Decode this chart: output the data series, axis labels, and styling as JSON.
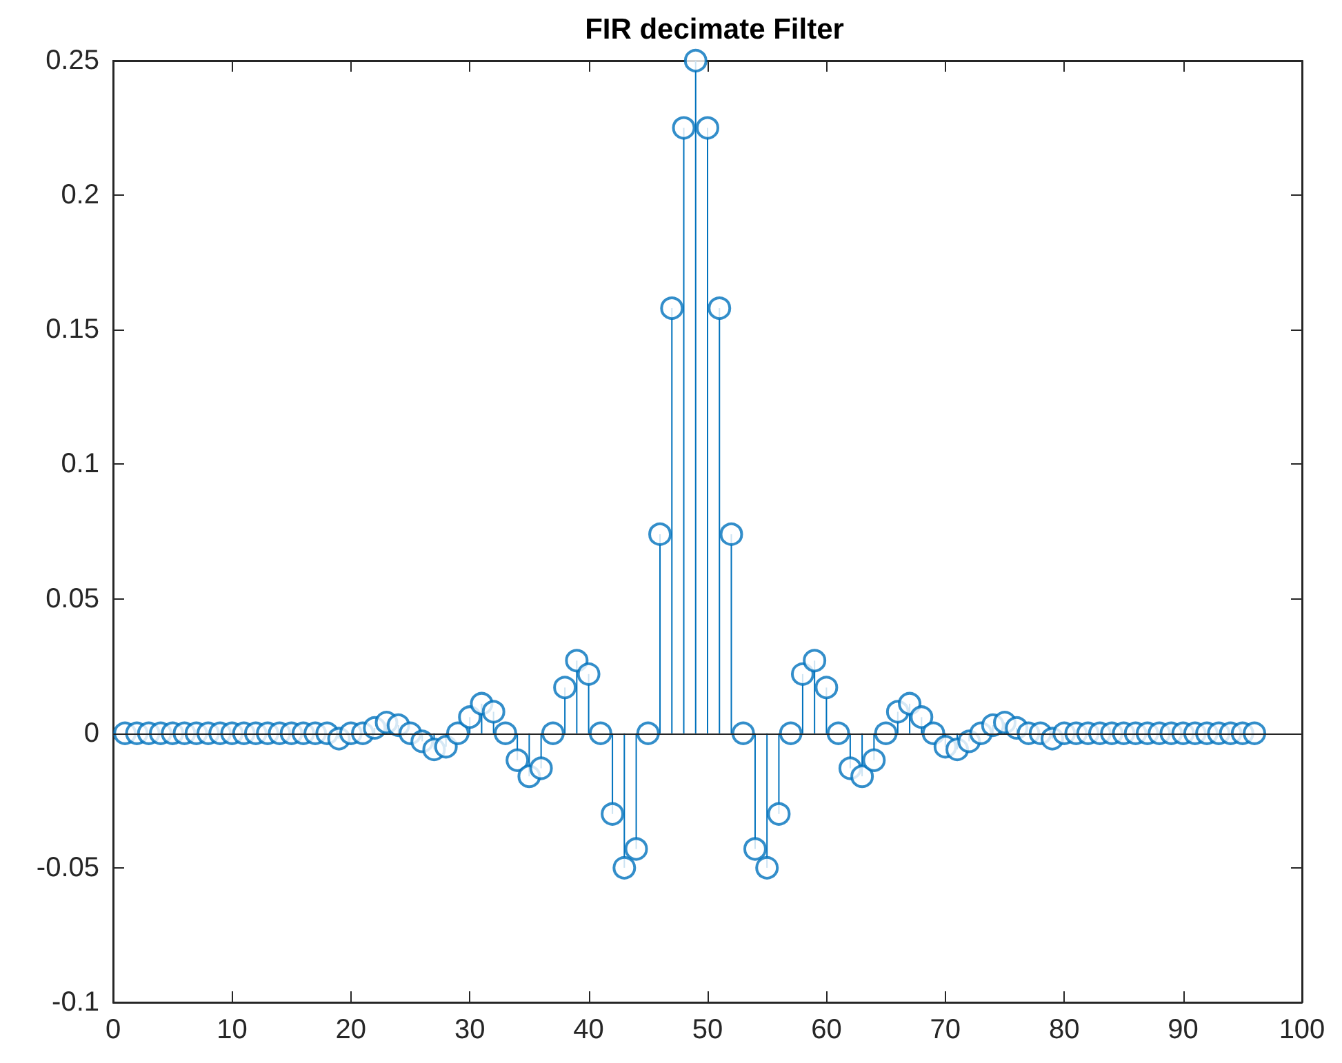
{
  "chart_data": {
    "type": "lollipop",
    "title": "FIR decimate Filter",
    "x": [
      1,
      2,
      3,
      4,
      5,
      6,
      7,
      8,
      9,
      10,
      11,
      12,
      13,
      14,
      15,
      16,
      17,
      18,
      19,
      20,
      21,
      22,
      23,
      24,
      25,
      26,
      27,
      28,
      29,
      30,
      31,
      32,
      33,
      34,
      35,
      36,
      37,
      38,
      39,
      40,
      41,
      42,
      43,
      44,
      45,
      46,
      47,
      48,
      49,
      50,
      51,
      52,
      53,
      54,
      55,
      56,
      57,
      58,
      59,
      60,
      61,
      62,
      63,
      64,
      65,
      66,
      67,
      68,
      69,
      70,
      71,
      72,
      73,
      74,
      75,
      76,
      77,
      78,
      79,
      80,
      81,
      82,
      83,
      84,
      85,
      86,
      87,
      88,
      89,
      90,
      91,
      92,
      93,
      94,
      95,
      96
    ],
    "values": [
      0,
      0,
      0,
      0,
      0,
      0,
      0,
      0,
      0,
      0,
      0,
      0,
      0,
      0,
      0,
      0,
      0,
      0,
      -0.002,
      0,
      0,
      0.002,
      0.004,
      0.003,
      0,
      -0.003,
      -0.006,
      -0.005,
      0,
      0.006,
      0.011,
      0.008,
      0,
      -0.01,
      -0.016,
      -0.013,
      0,
      0.017,
      0.027,
      0.022,
      0,
      -0.03,
      -0.05,
      -0.043,
      0,
      0.074,
      0.158,
      0.225,
      0.25,
      0.225,
      0.158,
      0.074,
      0,
      -0.043,
      -0.05,
      -0.03,
      0,
      0.022,
      0.027,
      0.017,
      0,
      -0.013,
      -0.016,
      -0.01,
      0,
      0.008,
      0.011,
      0.006,
      0,
      -0.005,
      -0.006,
      -0.003,
      0,
      0.003,
      0.004,
      0.002,
      0,
      0,
      -0.002,
      0,
      0,
      0,
      0,
      0,
      0,
      0,
      0,
      0,
      0,
      0,
      0,
      0,
      0,
      0,
      0,
      0
    ],
    "ref_lines": [
      {
        "axis": "y",
        "value": 0,
        "color": "#262626"
      }
    ],
    "color": "#0072bd",
    "marker": "circle",
    "grid": false,
    "xlim": [
      0,
      100
    ],
    "xticks": [
      0,
      10,
      20,
      30,
      40,
      50,
      60,
      70,
      80,
      90,
      100
    ],
    "ylim": [
      -0.1,
      0.25
    ],
    "yticks": [
      -0.1,
      -0.05,
      0,
      0.05,
      0.1,
      0.15,
      0.2,
      0.25
    ]
  }
}
